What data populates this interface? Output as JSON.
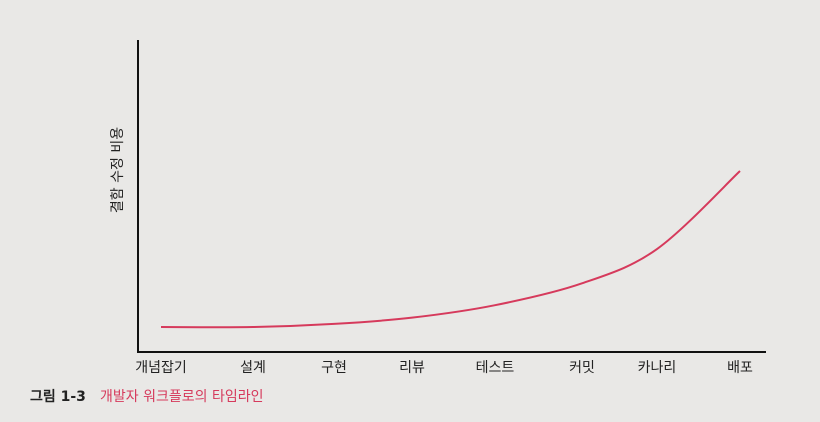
{
  "chart_data": {
    "type": "line",
    "ylabel": "결함 수정 비용",
    "categories": [
      "개념잡기",
      "설계",
      "구현",
      "리뷰",
      "테스트",
      "커밋",
      "카나리",
      "배포"
    ],
    "values": [
      8,
      8,
      9,
      11,
      15,
      22,
      33,
      58
    ],
    "color": "#d63a5c",
    "ylim": [
      0,
      100
    ],
    "figure_label": "그림 1-3",
    "caption": "개발자 워크플로의 타임라인"
  }
}
